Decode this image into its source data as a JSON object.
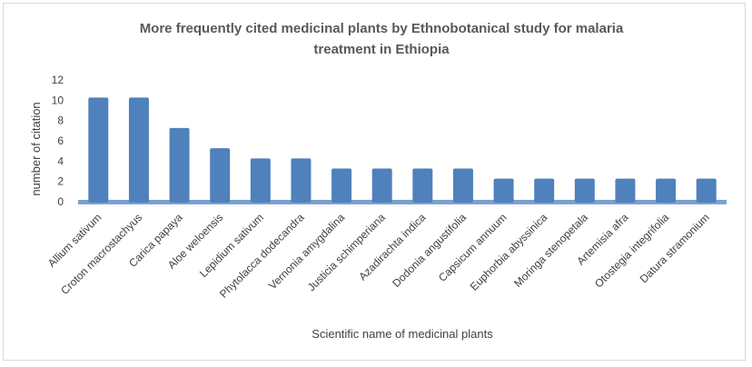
{
  "chart_data": {
    "type": "bar",
    "title_lines": [
      "More frequently cited  medicinal plants  by Ethnobotanical study for malaria",
      "treatment in Ethiopia"
    ],
    "xlabel": "Scientific name of medicinal plants",
    "ylabel": "number of citation",
    "ylim": [
      0,
      12
    ],
    "yticks": [
      0,
      2,
      4,
      6,
      8,
      10,
      12
    ],
    "grid": false,
    "legend": "none",
    "categories": [
      "Allium sativum",
      "Croton macrostachyus",
      "Carica papaya",
      "Aloe weloensis",
      "Lepidium sativum",
      "Phytolacca dodecandra",
      "Vernonia amygdalina",
      "Justicia schimperiana",
      "Azadirachta indica",
      "Dodonia  angustifolia",
      "Capsicum annuum",
      "Euphorbia abyssinica",
      "Moringa stenopetala",
      "Artemisia afra",
      "Otostegia integrifolia",
      "Datura  stramonium"
    ],
    "values": [
      10,
      10,
      7,
      5,
      4,
      4,
      3,
      3,
      3,
      3,
      2,
      2,
      2,
      2,
      2,
      2
    ],
    "bar_color": "#4f81bd",
    "floor_color": "#7ba0cf"
  }
}
